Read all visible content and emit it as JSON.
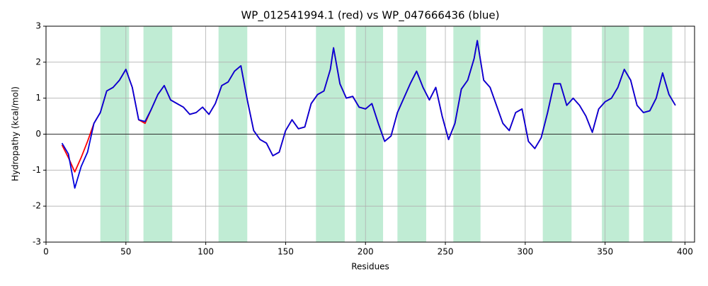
{
  "chart_data": {
    "type": "line",
    "title": "WP_012541994.1 (red) vs WP_047666436 (blue)",
    "x_label": "Residues",
    "y_label": "Hydropathy (kcal/mol)",
    "x": [
      10,
      14,
      18,
      22,
      26,
      30,
      34,
      38,
      42,
      46,
      50,
      54,
      58,
      62,
      66,
      70,
      74,
      78,
      82,
      86,
      90,
      94,
      98,
      102,
      106,
      110,
      114,
      118,
      122,
      126,
      130,
      134,
      138,
      142,
      146,
      150,
      154,
      158,
      162,
      166,
      170,
      174,
      178,
      180,
      184,
      188,
      192,
      196,
      200,
      204,
      208,
      212,
      216,
      220,
      224,
      228,
      232,
      236,
      240,
      244,
      248,
      252,
      256,
      260,
      264,
      268,
      270,
      274,
      278,
      282,
      286,
      290,
      294,
      298,
      302,
      306,
      310,
      314,
      318,
      322,
      326,
      330,
      334,
      338,
      342,
      346,
      350,
      354,
      358,
      362,
      366,
      370,
      374,
      378,
      382,
      386,
      390,
      394
    ],
    "series": [
      {
        "name": "WP_012541994.1",
        "color": "#ff0000",
        "values": [
          -0.3,
          -0.65,
          -1.05,
          -0.65,
          -0.2,
          0.3,
          0.6,
          1.2,
          1.3,
          1.5,
          1.8,
          1.3,
          0.4,
          0.3,
          0.7,
          1.1,
          1.35,
          0.95,
          0.85,
          0.75,
          0.55,
          0.6,
          0.75,
          0.55,
          0.85,
          1.35,
          1.45,
          1.75,
          1.9,
          0.95,
          0.1,
          -0.15,
          -0.25,
          -0.6,
          -0.5,
          0.1,
          0.4,
          0.15,
          0.2,
          0.85,
          1.1,
          1.2,
          1.8,
          2.4,
          1.4,
          1.0,
          1.05,
          0.75,
          0.7,
          0.85,
          0.3,
          -0.2,
          -0.05,
          0.6,
          1.0,
          1.4,
          1.75,
          1.3,
          0.95,
          1.3,
          0.5,
          -0.15,
          0.3,
          1.25,
          1.5,
          2.1,
          2.6,
          1.5,
          1.3,
          0.8,
          0.3,
          0.1,
          0.6,
          0.7,
          -0.2,
          -0.4,
          -0.1,
          0.6,
          1.4,
          1.4,
          0.8,
          1.0,
          0.8,
          0.5,
          0.05,
          0.7,
          0.9,
          1.0,
          1.3,
          1.8,
          1.5,
          0.8,
          0.6,
          0.65,
          1.0,
          1.7,
          1.1,
          0.8
        ]
      },
      {
        "name": "WP_047666436",
        "color": "#0000dd",
        "values": [
          -0.25,
          -0.55,
          -1.5,
          -0.9,
          -0.5,
          0.3,
          0.6,
          1.2,
          1.3,
          1.5,
          1.8,
          1.3,
          0.4,
          0.35,
          0.7,
          1.1,
          1.35,
          0.95,
          0.85,
          0.75,
          0.55,
          0.6,
          0.75,
          0.55,
          0.85,
          1.35,
          1.45,
          1.75,
          1.9,
          0.95,
          0.1,
          -0.15,
          -0.25,
          -0.6,
          -0.5,
          0.1,
          0.4,
          0.15,
          0.2,
          0.85,
          1.1,
          1.2,
          1.8,
          2.4,
          1.4,
          1.0,
          1.05,
          0.75,
          0.7,
          0.85,
          0.3,
          -0.2,
          -0.05,
          0.6,
          1.0,
          1.4,
          1.75,
          1.3,
          0.95,
          1.3,
          0.5,
          -0.15,
          0.3,
          1.25,
          1.5,
          2.1,
          2.6,
          1.5,
          1.3,
          0.8,
          0.3,
          0.1,
          0.6,
          0.7,
          -0.2,
          -0.4,
          -0.1,
          0.6,
          1.4,
          1.4,
          0.8,
          1.0,
          0.8,
          0.5,
          0.05,
          0.7,
          0.9,
          1.0,
          1.3,
          1.8,
          1.5,
          0.8,
          0.6,
          0.65,
          1.0,
          1.7,
          1.1,
          0.8
        ]
      }
    ],
    "regions": [
      [
        34,
        52
      ],
      [
        61,
        79
      ],
      [
        108,
        126
      ],
      [
        169,
        187
      ],
      [
        194,
        211
      ],
      [
        220,
        238
      ],
      [
        255,
        272
      ],
      [
        311,
        329
      ],
      [
        348,
        365
      ],
      [
        374,
        392
      ]
    ],
    "region_color": "#c0ecd4",
    "xlim": [
      0,
      406
    ],
    "ylim": [
      -3,
      3
    ],
    "xticks": [
      0,
      50,
      100,
      150,
      200,
      250,
      300,
      350,
      400
    ],
    "yticks": [
      -3,
      -2,
      -1,
      0,
      1,
      2,
      3
    ],
    "grid": true
  }
}
